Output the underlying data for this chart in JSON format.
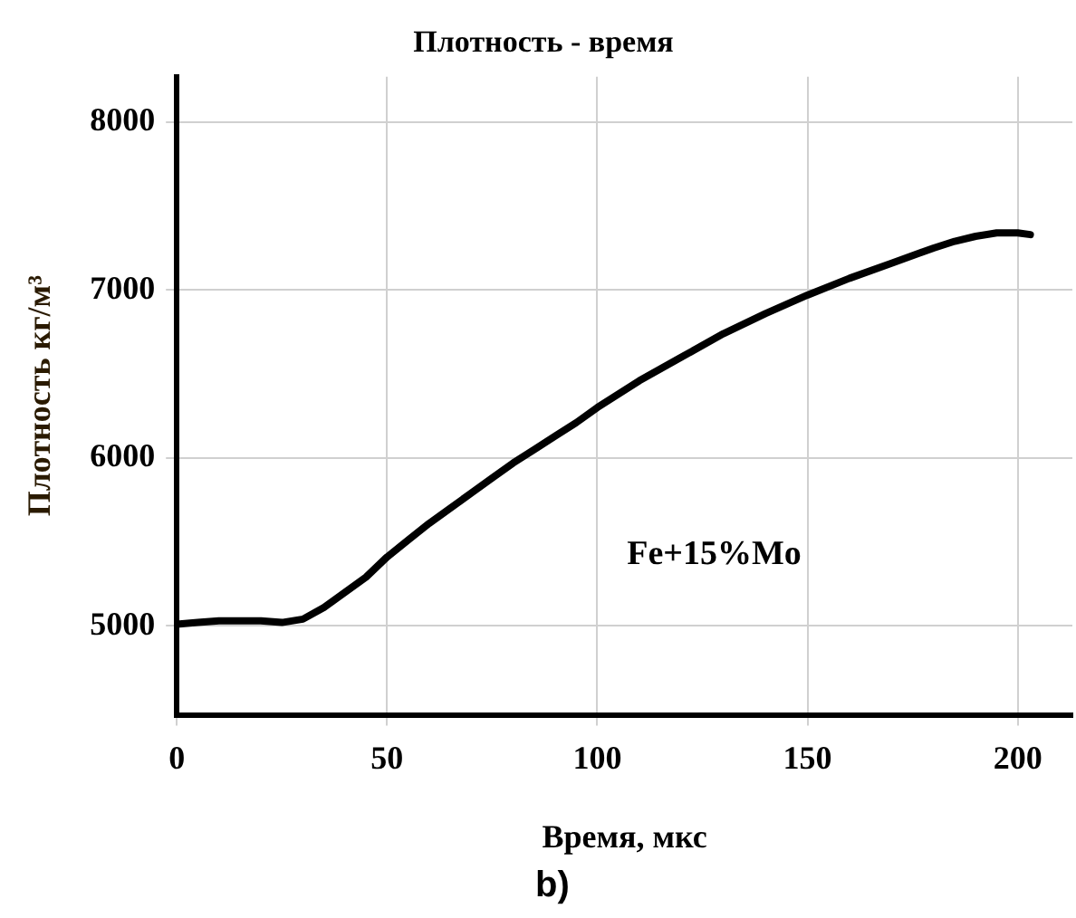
{
  "chart_data": {
    "type": "line",
    "title": "Плотность - время",
    "xlabel": "Время, мкс",
    "ylabel": "Плотность кг/м³",
    "x": [
      0,
      5,
      10,
      15,
      20,
      25,
      30,
      35,
      40,
      45,
      50,
      55,
      60,
      65,
      70,
      75,
      80,
      85,
      90,
      95,
      100,
      110,
      120,
      130,
      140,
      150,
      160,
      170,
      180,
      185,
      190,
      195,
      200,
      203
    ],
    "series": [
      {
        "color": "#000000",
        "values": [
          5010,
          5020,
          5030,
          5030,
          5030,
          5020,
          5040,
          5110,
          5200,
          5290,
          5410,
          5510,
          5610,
          5700,
          5790,
          5880,
          5970,
          6050,
          6130,
          6210,
          6300,
          6460,
          6600,
          6740,
          6860,
          6970,
          7070,
          7160,
          7250,
          7290,
          7320,
          7340,
          7340,
          7330
        ]
      }
    ],
    "xlim": [
      0,
      213
    ],
    "ylim": [
      4470,
      8270
    ],
    "xticks": [
      0,
      50,
      100,
      150,
      200
    ],
    "yticks": [
      5000,
      6000,
      7000,
      8000
    ],
    "grid": true,
    "legend": false,
    "marker": "none",
    "line_style": "solid",
    "annotations": [
      "Fe+15%Mo",
      "b)"
    ]
  }
}
